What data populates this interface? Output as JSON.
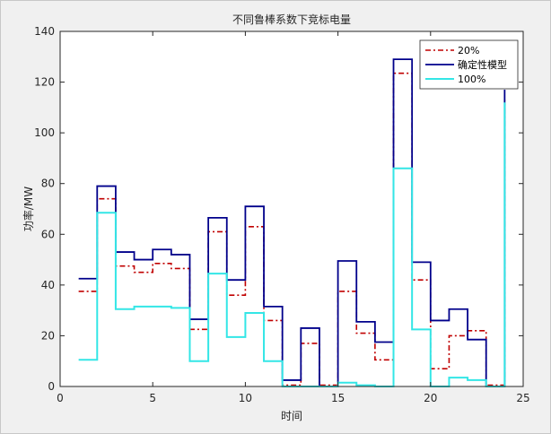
{
  "chart_data": {
    "type": "line",
    "step": "post",
    "title": "不同鲁棒系数下竞标电量",
    "xlabel": "时间",
    "ylabel": "功率/MW",
    "xlim": [
      0,
      25
    ],
    "ylim": [
      0,
      140
    ],
    "xticks": [
      0,
      5,
      10,
      15,
      20,
      25
    ],
    "yticks": [
      0,
      20,
      40,
      60,
      80,
      100,
      120,
      140
    ],
    "grid": false,
    "legend_position": "top-right",
    "x": [
      1,
      2,
      3,
      4,
      5,
      6,
      7,
      8,
      9,
      10,
      11,
      12,
      13,
      14,
      15,
      16,
      17,
      18,
      19,
      20,
      21,
      22,
      23,
      24
    ],
    "series": [
      {
        "name": "20%",
        "color": "#c00000",
        "style": "dash-dot",
        "values": [
          37.5,
          74,
          47.5,
          45,
          48.5,
          46.5,
          22.5,
          61,
          36,
          63,
          26,
          0.5,
          17,
          0.5,
          37.5,
          21,
          10.5,
          123.5,
          42,
          7,
          20,
          22,
          0.5,
          113
        ]
      },
      {
        "name": "确定性模型",
        "color": "#00008b",
        "style": "solid",
        "values": [
          42.5,
          79,
          53,
          50,
          54,
          52,
          26.5,
          66.5,
          42,
          71,
          31.5,
          2.5,
          23,
          0,
          49.5,
          25.5,
          17.5,
          129,
          49,
          26,
          30.5,
          18.5,
          0,
          117
        ]
      },
      {
        "name": "100%",
        "color": "#33e6e6",
        "style": "solid",
        "values": [
          10.5,
          68.5,
          30.5,
          31.5,
          31.5,
          31,
          10,
          44.5,
          19.5,
          29,
          10,
          0,
          0,
          0,
          1.5,
          0.5,
          0,
          86,
          22.5,
          0,
          3.5,
          2.5,
          0,
          112
        ]
      }
    ]
  }
}
